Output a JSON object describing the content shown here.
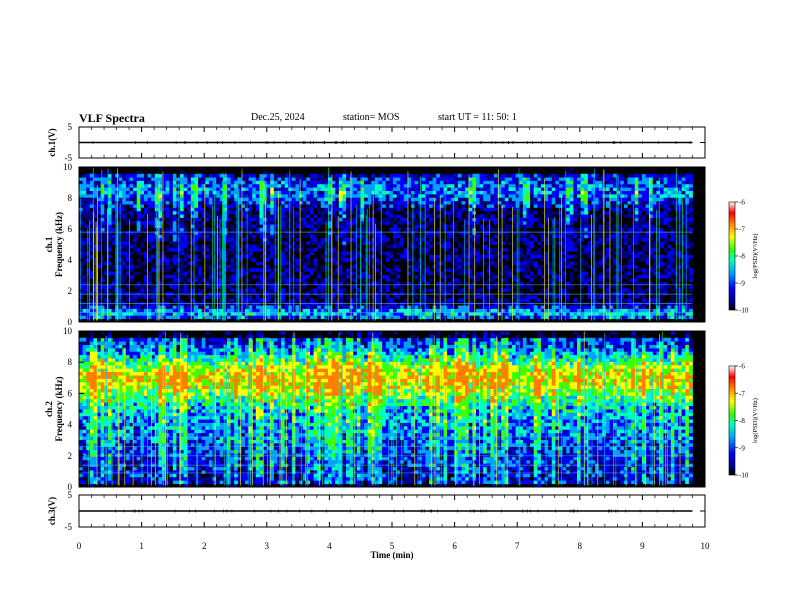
{
  "header": {
    "title": "VLF Spectra",
    "date": "Dec.25, 2024",
    "station": "station= MOS",
    "start": "start  UT =   11: 50: 1"
  },
  "chart_data": [
    {
      "type": "line",
      "name": "ch1-waveform",
      "ylabel": "ch.1(V)",
      "ylim": [
        -5,
        5
      ],
      "yticks": [
        "5",
        "-5"
      ],
      "xlim": [
        0,
        10
      ],
      "value": 0
    },
    {
      "type": "heatmap",
      "name": "ch1-spectrogram",
      "ylabel": "ch.1\nFrequency (kHz)",
      "ylabel_lines": [
        "ch.1",
        "Frequency (kHz)"
      ],
      "ylim": [
        0,
        10
      ],
      "yticks": [
        "0",
        "2",
        "4",
        "6",
        "8",
        "10"
      ],
      "xlim": [
        0,
        10
      ],
      "colorbar": {
        "label": "log(PSD)(V²/Hz)",
        "range": [
          -10,
          -6
        ],
        "ticks": [
          "-6",
          "-7",
          "-8",
          "-9",
          "-10"
        ]
      }
    },
    {
      "type": "heatmap",
      "name": "ch2-spectrogram",
      "ylabel": "ch.2\nFrequency (kHz)",
      "ylabel_lines": [
        "ch.2",
        "Frequency (kHz)"
      ],
      "ylim": [
        0,
        10
      ],
      "yticks": [
        "0",
        "2",
        "4",
        "6",
        "8",
        "10"
      ],
      "xlim": [
        0,
        10
      ],
      "colorbar": {
        "label": "log(PSD)(V²/Hz)",
        "range": [
          -10,
          -6
        ],
        "ticks": [
          "-6",
          "-7",
          "-8",
          "-9",
          "-10"
        ]
      }
    },
    {
      "type": "line",
      "name": "ch3-waveform",
      "ylabel": "ch.3(V)",
      "ylim": [
        -5,
        5
      ],
      "yticks": [
        "5",
        "-5"
      ],
      "xlim": [
        0,
        10
      ],
      "value": 0
    }
  ],
  "xaxis": {
    "label": "Time  (min)",
    "ticks": [
      "0",
      "1",
      "2",
      "3",
      "4",
      "5",
      "6",
      "7",
      "8",
      "9",
      "10"
    ],
    "range": [
      0,
      10
    ]
  },
  "colors": {
    "colormap": [
      "#000000",
      "#000080",
      "#0000ff",
      "#00a0ff",
      "#00ffc0",
      "#40ff00",
      "#ffff00",
      "#ff8000",
      "#ff0000",
      "#ffffff"
    ]
  }
}
